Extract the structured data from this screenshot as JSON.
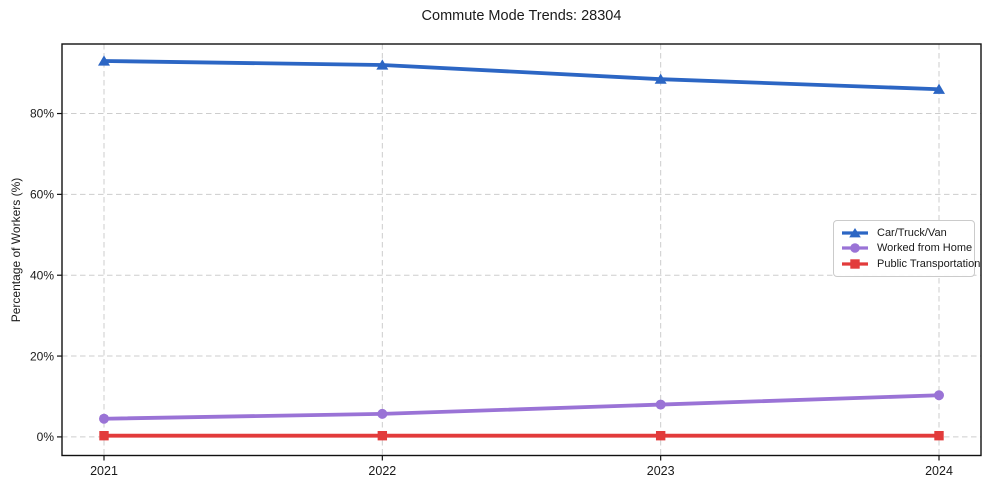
{
  "chart_data": {
    "type": "line",
    "title": "Commute Mode Trends: 28304",
    "ylabel": "Percentage of Workers (%)",
    "xlabel": "",
    "categories": [
      "2021",
      "2022",
      "2023",
      "2024"
    ],
    "series": [
      {
        "name": "Car/Truck/Van",
        "color": "#2c66c4",
        "marker": "triangle",
        "values": [
          93,
          92,
          88.5,
          86
        ]
      },
      {
        "name": "Worked from Home",
        "color": "#9a73d6",
        "marker": "circle",
        "values": [
          4.5,
          5.7,
          8,
          10.3
        ]
      },
      {
        "name": "Public Transportation",
        "color": "#e23b3b",
        "marker": "square",
        "values": [
          0.3,
          0.3,
          0.3,
          0.3
        ]
      }
    ],
    "ytick_labels": [
      "0%",
      "20%",
      "40%",
      "60%",
      "80%"
    ],
    "ytick_values": [
      0,
      20,
      40,
      60,
      80
    ],
    "ylim": [
      -4.6,
      97.2
    ],
    "grid": true,
    "grid_color": "#cdcdcd",
    "spine_color": "#111111",
    "tick_label_color": "#1a1a1a",
    "legend_position": "right-center"
  }
}
